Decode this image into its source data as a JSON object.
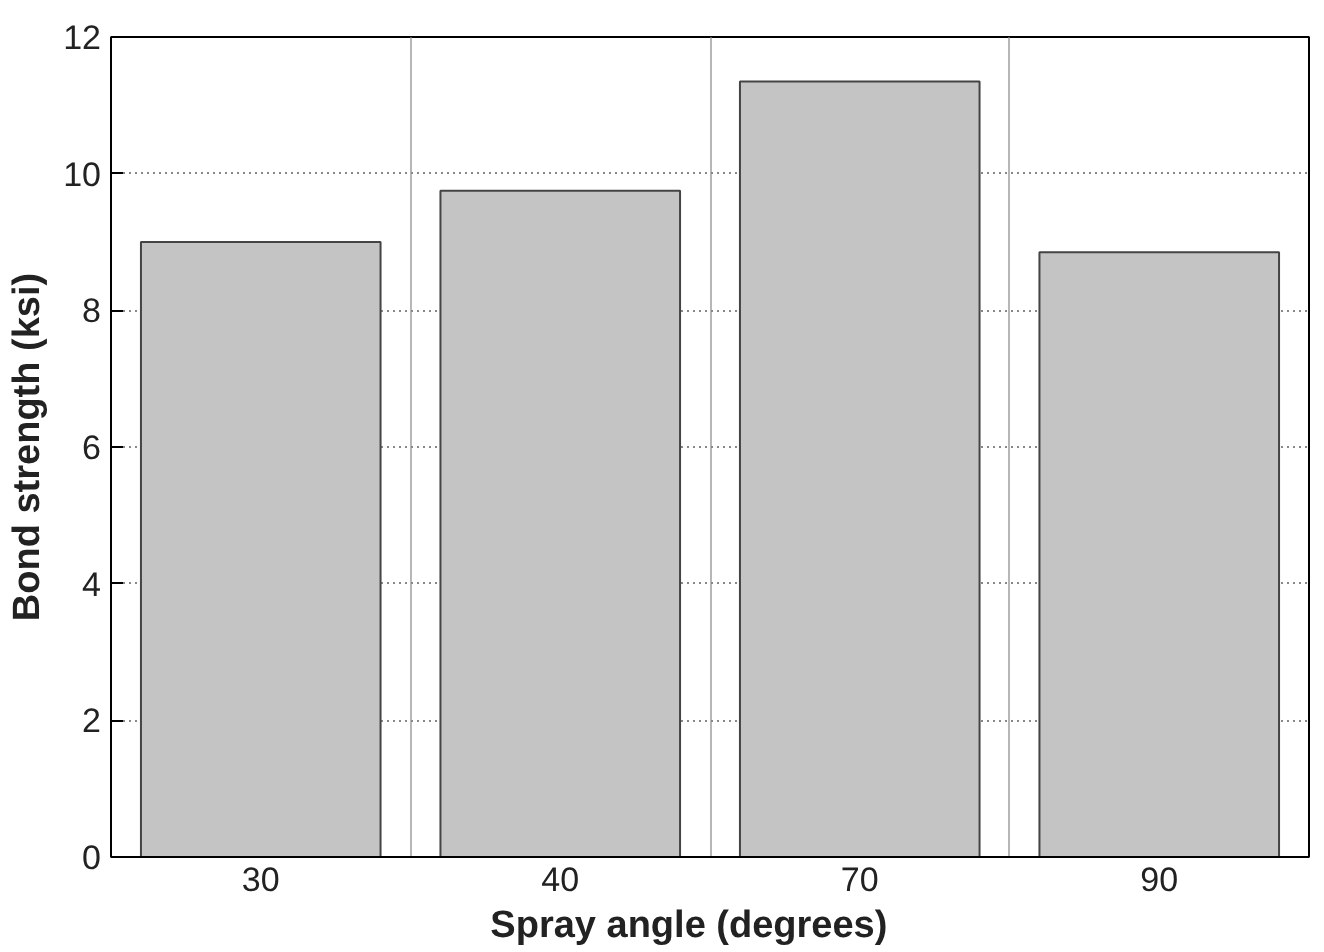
{
  "chart_data": {
    "type": "bar",
    "categories": [
      "30",
      "40",
      "70",
      "90"
    ],
    "values": [
      9.0,
      9.75,
      11.35,
      8.85
    ],
    "color": "#c4c4c4",
    "xlabel": "Spray   angle   (degrees)",
    "ylabel": "Bond strength (ksi)",
    "ylim": [
      0,
      12
    ],
    "yticks": [
      0,
      2,
      4,
      6,
      8,
      10,
      12
    ],
    "grid": true
  }
}
